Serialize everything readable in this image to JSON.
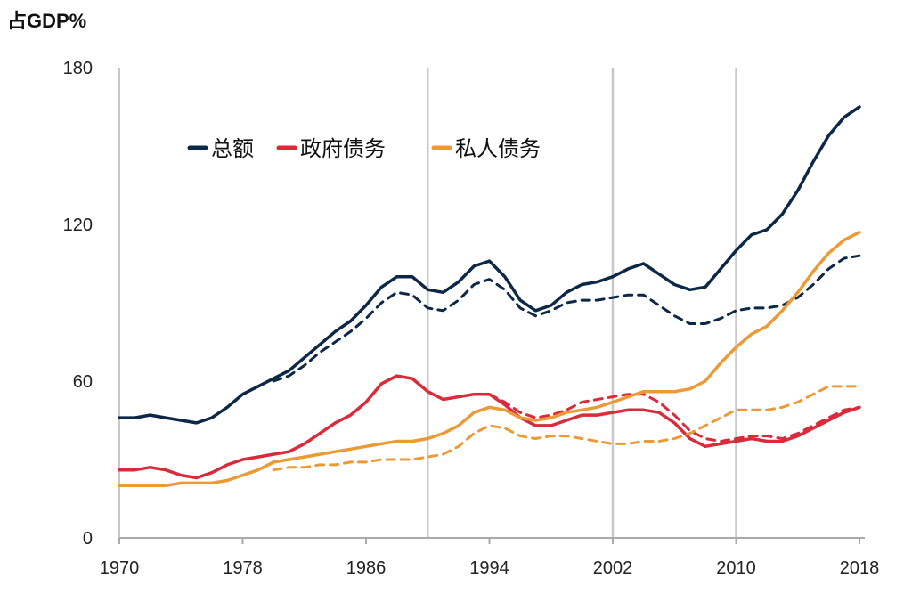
{
  "chart_data": {
    "type": "line",
    "ylabel": "占GDP%",
    "ylim": [
      0,
      180
    ],
    "xlim": [
      1970,
      2018
    ],
    "y_ticks": [
      "0",
      "60",
      "120",
      "180"
    ],
    "x_ticks": [
      "1970",
      "1978",
      "1986",
      "1994",
      "2002",
      "2010",
      "2018"
    ],
    "vertical_reference_lines": [
      1990,
      2002,
      2010
    ],
    "legend": [
      "总额",
      "政府债务",
      "私人债务"
    ],
    "colors": {
      "total": "#0d2847",
      "government": "#d92b3a",
      "private": "#ed9a36",
      "gridline": "#c8c8c8"
    },
    "series": [
      {
        "name": "总额",
        "color": "#0d2847",
        "style": "solid",
        "x": [
          1970,
          1971,
          1972,
          1973,
          1974,
          1975,
          1976,
          1977,
          1978,
          1979,
          1980,
          1981,
          1982,
          1983,
          1984,
          1985,
          1986,
          1987,
          1988,
          1989,
          1990,
          1991,
          1992,
          1993,
          1994,
          1995,
          1996,
          1997,
          1998,
          1999,
          2000,
          2001,
          2002,
          2003,
          2004,
          2005,
          2006,
          2007,
          2008,
          2009,
          2010,
          2011,
          2012,
          2013,
          2014,
          2015,
          2016,
          2017,
          2018
        ],
        "values": [
          46,
          46,
          47,
          46,
          45,
          44,
          46,
          50,
          55,
          58,
          61,
          64,
          69,
          74,
          79,
          83,
          89,
          96,
          100,
          100,
          95,
          94,
          98,
          104,
          106,
          100,
          91,
          87,
          89,
          94,
          97,
          98,
          100,
          103,
          105,
          101,
          97,
          95,
          96,
          103,
          110,
          116,
          118,
          124,
          133,
          144,
          154,
          161,
          165
        ]
      },
      {
        "name": "",
        "color": "#0d2847",
        "style": "dashed",
        "x": [
          1980,
          1981,
          1982,
          1983,
          1984,
          1985,
          1986,
          1987,
          1988,
          1989,
          1990,
          1991,
          1992,
          1993,
          1994,
          1995,
          1996,
          1997,
          1998,
          1999,
          2000,
          2001,
          2002,
          2003,
          2004,
          2005,
          2006,
          2007,
          2008,
          2009,
          2010,
          2011,
          2012,
          2013,
          2014,
          2015,
          2016,
          2017,
          2018
        ],
        "values": [
          60,
          62,
          66,
          71,
          75,
          79,
          84,
          90,
          94,
          93,
          88,
          87,
          91,
          97,
          99,
          95,
          88,
          85,
          87,
          90,
          91,
          91,
          92,
          93,
          93,
          89,
          85,
          82,
          82,
          84,
          87,
          88,
          88,
          89,
          92,
          97,
          103,
          107,
          108
        ]
      },
      {
        "name": "政府债务",
        "color": "#d92b3a",
        "style": "solid",
        "x": [
          1970,
          1971,
          1972,
          1973,
          1974,
          1975,
          1976,
          1977,
          1978,
          1979,
          1980,
          1981,
          1982,
          1983,
          1984,
          1985,
          1986,
          1987,
          1988,
          1989,
          1990,
          1991,
          1992,
          1993,
          1994,
          1995,
          1996,
          1997,
          1998,
          1999,
          2000,
          2001,
          2002,
          2003,
          2004,
          2005,
          2006,
          2007,
          2008,
          2009,
          2010,
          2011,
          2012,
          2013,
          2014,
          2015,
          2016,
          2017,
          2018
        ],
        "values": [
          26,
          26,
          27,
          26,
          24,
          23,
          25,
          28,
          30,
          31,
          32,
          33,
          36,
          40,
          44,
          47,
          52,
          59,
          62,
          61,
          56,
          53,
          54,
          55,
          55,
          51,
          46,
          43,
          43,
          45,
          47,
          47,
          48,
          49,
          49,
          48,
          44,
          38,
          35,
          36,
          37,
          38,
          37,
          37,
          39,
          42,
          45,
          48,
          50
        ]
      },
      {
        "name": "",
        "color": "#d92b3a",
        "style": "dashed",
        "x": [
          1994,
          1995,
          1996,
          1997,
          1998,
          1999,
          2000,
          2001,
          2002,
          2003,
          2004,
          2005,
          2006,
          2007,
          2008,
          2009,
          2010,
          2011,
          2012,
          2013,
          2014,
          2015,
          2016,
          2017,
          2018
        ],
        "values": [
          55,
          52,
          48,
          46,
          47,
          49,
          52,
          53,
          54,
          55,
          55,
          52,
          47,
          41,
          38,
          37,
          38,
          39,
          39,
          38,
          40,
          43,
          46,
          49,
          50
        ]
      },
      {
        "name": "私人债务",
        "color": "#ed9a36",
        "style": "solid",
        "x": [
          1970,
          1971,
          1972,
          1973,
          1974,
          1975,
          1976,
          1977,
          1978,
          1979,
          1980,
          1981,
          1982,
          1983,
          1984,
          1985,
          1986,
          1987,
          1988,
          1989,
          1990,
          1991,
          1992,
          1993,
          1994,
          1995,
          1996,
          1997,
          1998,
          1999,
          2000,
          2001,
          2002,
          2003,
          2004,
          2005,
          2006,
          2007,
          2008,
          2009,
          2010,
          2011,
          2012,
          2013,
          2014,
          2015,
          2016,
          2017,
          2018
        ],
        "values": [
          20,
          20,
          20,
          20,
          21,
          21,
          21,
          22,
          24,
          26,
          29,
          30,
          31,
          32,
          33,
          34,
          35,
          36,
          37,
          37,
          38,
          40,
          43,
          48,
          50,
          49,
          46,
          45,
          46,
          48,
          49,
          50,
          52,
          54,
          56,
          56,
          56,
          57,
          60,
          67,
          73,
          78,
          81,
          87,
          94,
          102,
          109,
          114,
          117
        ]
      },
      {
        "name": "",
        "color": "#ed9a36",
        "style": "dashed",
        "x": [
          1980,
          1981,
          1982,
          1983,
          1984,
          1985,
          1986,
          1987,
          1988,
          1989,
          1990,
          1991,
          1992,
          1993,
          1994,
          1995,
          1996,
          1997,
          1998,
          1999,
          2000,
          2001,
          2002,
          2003,
          2004,
          2005,
          2006,
          2007,
          2008,
          2009,
          2010,
          2011,
          2012,
          2013,
          2014,
          2015,
          2016,
          2017,
          2018
        ],
        "values": [
          26,
          27,
          27,
          28,
          28,
          29,
          29,
          30,
          30,
          30,
          31,
          32,
          35,
          40,
          43,
          42,
          39,
          38,
          39,
          39,
          38,
          37,
          36,
          36,
          37,
          37,
          38,
          40,
          43,
          46,
          49,
          49,
          49,
          50,
          52,
          55,
          58,
          58,
          58
        ]
      }
    ]
  }
}
